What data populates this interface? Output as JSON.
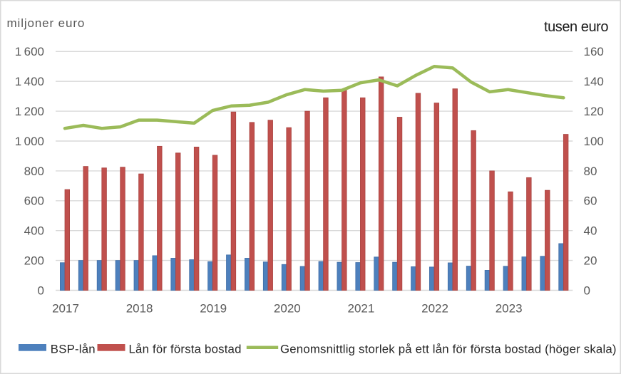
{
  "chart_data": {
    "type": "bar",
    "subtype": "grouped-bars-with-line",
    "title": "",
    "left_axis": {
      "label": "miljoner euro",
      "min": 0,
      "max": 1600,
      "step": 200,
      "tick_labels": [
        "0",
        "200",
        "400",
        "600",
        "800",
        "1 000",
        "1 200",
        "1 400",
        "1 600"
      ]
    },
    "right_axis": {
      "label": "tusen euro",
      "min": 0,
      "max": 160,
      "step": 20,
      "tick_labels": [
        "0",
        "20",
        "40",
        "60",
        "80",
        "100",
        "120",
        "140",
        "160"
      ]
    },
    "x_year_labels": [
      "2017",
      "2018",
      "2019",
      "2020",
      "2021",
      "2022",
      "2023"
    ],
    "categories": [
      "2017Q1",
      "2017Q2",
      "2017Q3",
      "2017Q4",
      "2018Q1",
      "2018Q2",
      "2018Q3",
      "2018Q4",
      "2019Q1",
      "2019Q2",
      "2019Q3",
      "2019Q4",
      "2020Q1",
      "2020Q2",
      "2020Q3",
      "2020Q4",
      "2021Q1",
      "2021Q2",
      "2021Q3",
      "2021Q4",
      "2022Q1",
      "2022Q2",
      "2022Q3",
      "2022Q4",
      "2023Q1",
      "2023Q2",
      "2023Q3",
      "2023Q4"
    ],
    "series": [
      {
        "name": "BSP-lån",
        "type": "bar",
        "axis": "left",
        "values": [
          185,
          200,
          200,
          200,
          200,
          232,
          215,
          205,
          192,
          237,
          215,
          190,
          173,
          160,
          193,
          188,
          186,
          223,
          188,
          158,
          156,
          184,
          162,
          134,
          161,
          224,
          228,
          313
        ]
      },
      {
        "name": "Lån för första bostad",
        "type": "bar",
        "axis": "left",
        "values": [
          675,
          830,
          820,
          825,
          780,
          965,
          920,
          960,
          905,
          1195,
          1125,
          1140,
          1090,
          1200,
          1290,
          1345,
          1290,
          1430,
          1160,
          1320,
          1255,
          1350,
          1070,
          800,
          660,
          755,
          670,
          1045
        ]
      },
      {
        "name": "Genomsnittlig storlek på ett lån för första bostad (höger skala)",
        "type": "line",
        "axis": "right",
        "values": [
          108.5,
          110.5,
          108.5,
          109.5,
          114,
          114,
          113,
          112,
          120.5,
          123.5,
          124,
          126,
          131,
          134.5,
          133.5,
          134,
          139,
          141,
          137,
          144,
          150,
          149,
          139.5,
          133,
          134.5,
          132.5,
          130.5,
          129
        ]
      }
    ],
    "grid": true,
    "legend_position": "bottom"
  },
  "colors": {
    "bar_blue": "#4d80bd",
    "bar_blue_edge": "#416ea6",
    "bar_red": "#c0504d",
    "bar_red_edge": "#aa4441",
    "line_green": "#9bbb59",
    "gridline": "#d9d9d9",
    "axis_text": "#595959",
    "dark_text": "#262626",
    "border": "#d9d9d9",
    "background": "#ffffff"
  },
  "legend": {
    "item1": "BSP-lån",
    "item2": "Lån för första bostad",
    "item3": "Genomsnittlig storlek på ett lån för första bostad (höger skala)"
  }
}
